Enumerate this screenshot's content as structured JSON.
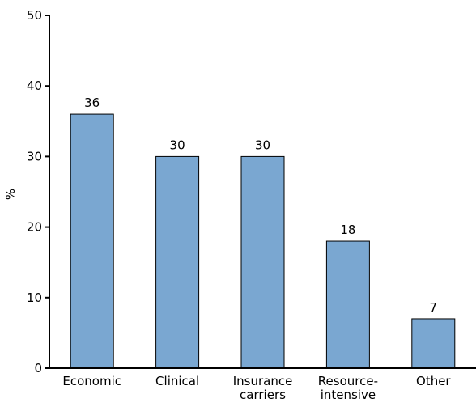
{
  "chart_data": {
    "type": "bar",
    "categories": [
      [
        "Economic"
      ],
      [
        "Clinical"
      ],
      [
        "Insurance",
        "carriers"
      ],
      [
        "Resource-",
        "intensive"
      ],
      [
        "Other"
      ]
    ],
    "values": [
      36,
      30,
      30,
      18,
      7
    ],
    "data_labels": [
      "36",
      "30",
      "30",
      "18",
      "7"
    ],
    "ylabel": "%",
    "xlabel": "",
    "title": "",
    "ylim": [
      0,
      50
    ],
    "yticks": [
      0,
      10,
      20,
      30,
      40,
      50
    ],
    "bar_color": "#7aa7d1",
    "bar_stroke": "#000000",
    "grid": false
  }
}
